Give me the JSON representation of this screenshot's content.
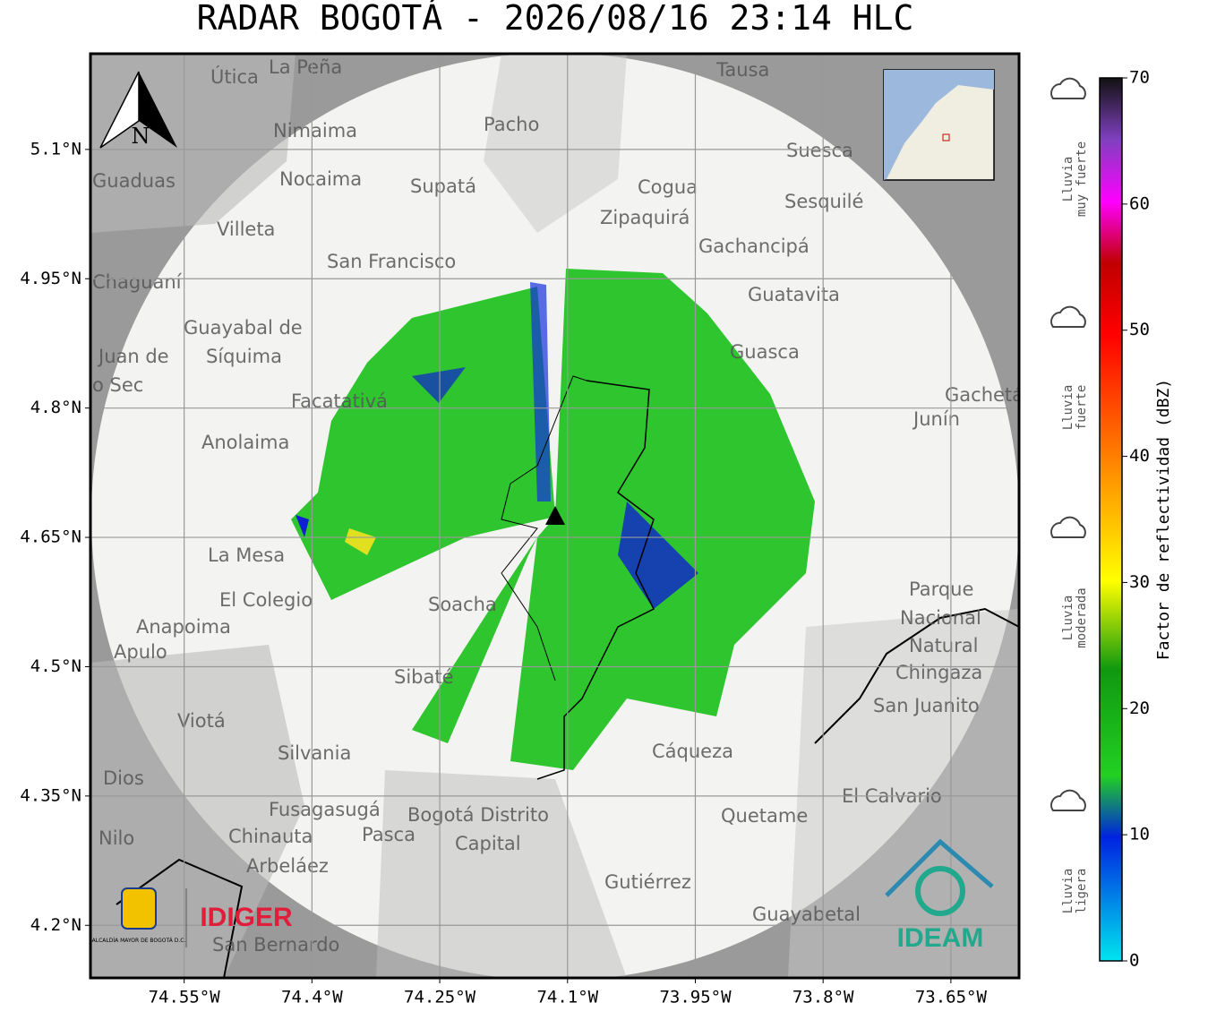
{
  "title": "RADAR BOGOTÁ - 2026/08/16 23:14 HLC",
  "map": {
    "xlim": [
      -74.66,
      -73.57
    ],
    "ylim": [
      4.139,
      5.211
    ],
    "xticks": [
      {
        "value": -74.55,
        "label": "74.55°W"
      },
      {
        "value": -74.4,
        "label": "74.4°W"
      },
      {
        "value": -74.25,
        "label": "74.25°W"
      },
      {
        "value": -74.1,
        "label": "74.1°W"
      },
      {
        "value": -73.95,
        "label": "73.95°W"
      },
      {
        "value": -73.8,
        "label": "73.8°W"
      },
      {
        "value": -73.65,
        "label": "73.65°W"
      }
    ],
    "yticks": [
      {
        "value": 4.2,
        "label": "4.2°N"
      },
      {
        "value": 4.35,
        "label": "4.35°N"
      },
      {
        "value": 4.5,
        "label": "4.5°N"
      },
      {
        "value": 4.65,
        "label": "4.65°N"
      },
      {
        "value": 4.8,
        "label": "4.8°N"
      },
      {
        "value": 4.95,
        "label": "4.95°N"
      },
      {
        "value": 5.1,
        "label": "5.1°N"
      }
    ],
    "north": "N",
    "places": [
      "La Peña",
      "Útica",
      "Tausa",
      "Nimaima",
      "Pacho",
      "Guaduas",
      "Nocaima",
      "Supatá",
      "Suesca",
      "Cogua",
      "Sesquilé",
      "Villeta",
      "Zipaquirá",
      "Gachancipá",
      "San Francisco",
      "Chaguaní",
      "Guatavita",
      "Guayabal de",
      "Síquima",
      "Guasca",
      "Juan de",
      "o Sec",
      "Facatativá",
      "Gachetá",
      "Junín",
      "Anolaima",
      "La Mesa",
      "El Colegio",
      "Soacha",
      "Parque",
      "Nacional",
      "Natural",
      "Chingaza",
      "Anapoima",
      "Apulo",
      "Sibaté",
      "San Juanito",
      "Viotá",
      "Silvania",
      "Cáqueza",
      "Dios",
      "El Calvario",
      "Fusagasugá",
      "Bogotá Distrito",
      "Capital",
      "Quetame",
      "Nilo",
      "Chinauta",
      "Pasca",
      "Arbeláez",
      "Gutiérrez",
      "Guayabetal",
      "San Bernardo"
    ]
  },
  "logos": {
    "alcaldia": "ALCALDÍA MAYOR DE BOGOTÁ D.C.",
    "idiger": "IDIGER",
    "ideam": "IDEAM"
  },
  "colorbar": {
    "label": "Factor de reflectividad (dBZ)",
    "lim": [
      0,
      70
    ],
    "ticks": [
      0,
      10,
      20,
      30,
      40,
      50,
      60,
      70
    ]
  },
  "legend": [
    [
      "Lluvia",
      "muy fuerte"
    ],
    [
      "Lluvia",
      "fuerte"
    ],
    [
      "Lluvia",
      "moderada"
    ],
    [
      "Lluvia",
      "ligera"
    ]
  ]
}
